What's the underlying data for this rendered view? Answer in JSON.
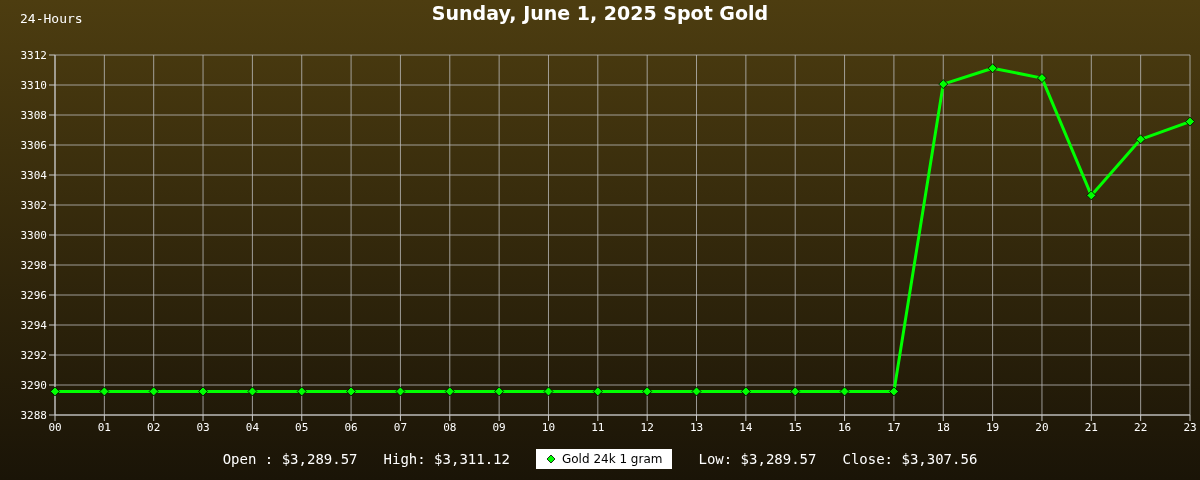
{
  "chart_data": {
    "type": "line",
    "title": "Sunday, June 1, 2025 Spot Gold",
    "subtitle": "24-Hours",
    "categories": [
      "00",
      "01",
      "02",
      "03",
      "04",
      "05",
      "06",
      "07",
      "08",
      "09",
      "10",
      "11",
      "12",
      "13",
      "14",
      "15",
      "16",
      "17",
      "18",
      "19",
      "20",
      "21",
      "22",
      "23"
    ],
    "series": [
      {
        "name": "Gold 24k 1 gram",
        "color": "#00ff00",
        "values": [
          3289.57,
          3289.57,
          3289.57,
          3289.57,
          3289.57,
          3289.57,
          3289.57,
          3289.57,
          3289.57,
          3289.57,
          3289.57,
          3289.57,
          3289.57,
          3289.57,
          3289.57,
          3289.57,
          3289.57,
          3289.57,
          3310.06,
          3311.12,
          3310.46,
          3302.64,
          3306.38,
          3307.56
        ]
      }
    ],
    "ylim": [
      3288,
      3312
    ],
    "yticks": [
      3288,
      3290,
      3292,
      3294,
      3296,
      3298,
      3300,
      3302,
      3304,
      3306,
      3308,
      3310,
      3312
    ],
    "grid": true,
    "legend": "bottom",
    "marker": "diamond",
    "line_style": "solid",
    "annotations": [
      "Open : $3,289.57",
      "High: $3,311.12",
      "Low: $3,289.57",
      "Close: $3,307.56"
    ]
  }
}
